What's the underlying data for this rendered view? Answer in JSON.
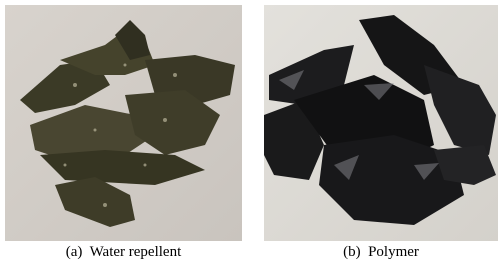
{
  "figure": {
    "panels": [
      {
        "caption": "(a)  Water repellent"
      },
      {
        "caption": "(b)  Polymer"
      }
    ]
  }
}
